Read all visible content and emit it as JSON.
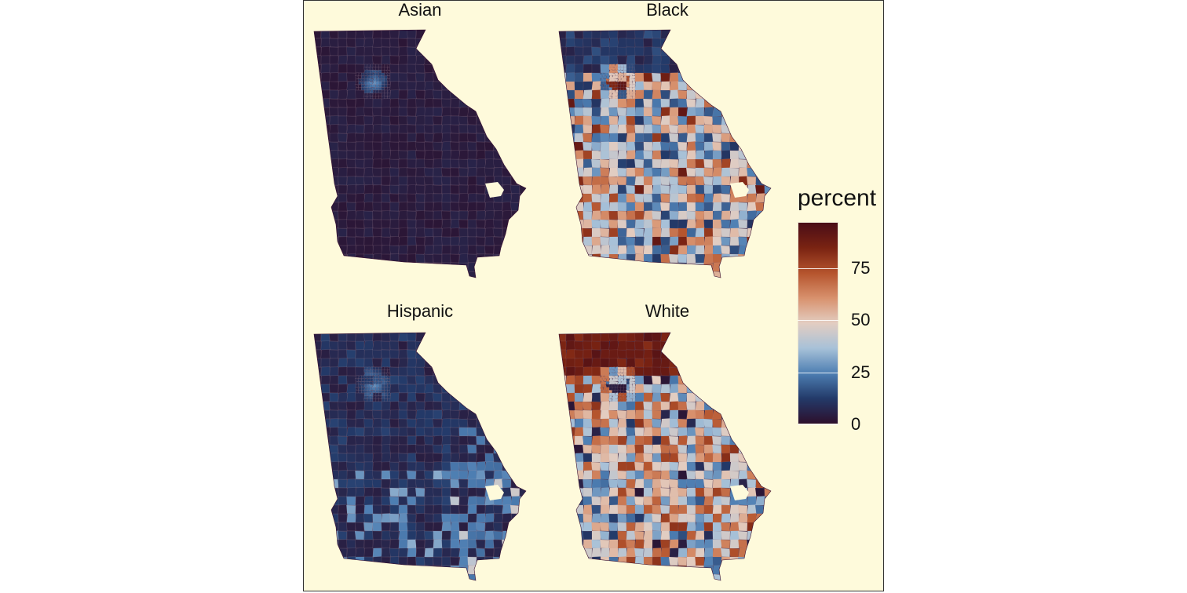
{
  "panels": [
    {
      "name": "Asian",
      "mode": "asian"
    },
    {
      "name": "Black",
      "mode": "black"
    },
    {
      "name": "Hispanic",
      "mode": "hispanic"
    },
    {
      "name": "White",
      "mode": "white"
    }
  ],
  "legend": {
    "title": "percent",
    "range": [
      0,
      97
    ],
    "ticks": [
      {
        "value": 0,
        "label": "0"
      },
      {
        "value": 25,
        "label": "25"
      },
      {
        "value": 50,
        "label": "50"
      },
      {
        "value": 75,
        "label": "75"
      }
    ],
    "colors": [
      "#2d0f2c",
      "#233a69",
      "#4d7eb2",
      "#a7c1d8",
      "#e3cdc1",
      "#d8916d",
      "#b5542d",
      "#7a2312",
      "#4a0d17"
    ]
  },
  "colors": {
    "panel_background": "#fefadb",
    "boundary": "#c8a8b0"
  }
}
